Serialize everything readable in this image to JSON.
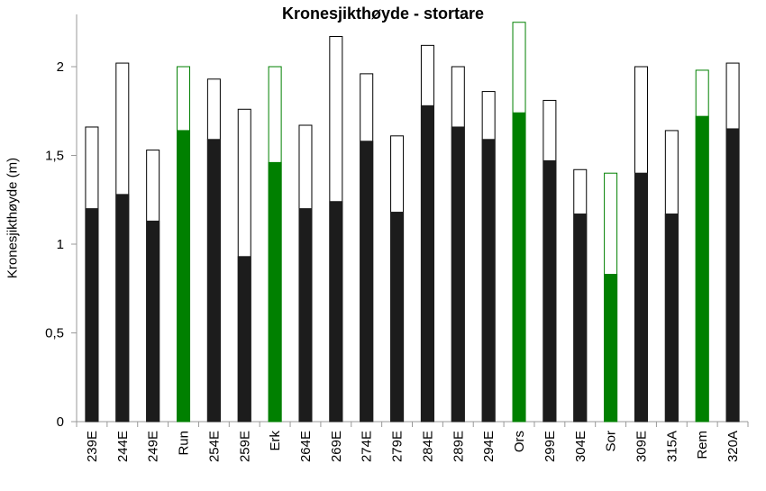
{
  "chart_data": {
    "type": "bar",
    "title": "Kronesjikthøyde - stortare",
    "ylabel": "Kronesjikthøyde  (m)",
    "xlabel": "",
    "ylim": [
      0,
      2.25
    ],
    "yticks": [
      0,
      0.5,
      1,
      1.5,
      2
    ],
    "ytick_labels": [
      "0",
      "0,5",
      "1",
      "1,5",
      "2"
    ],
    "categories": [
      "239E",
      "244E",
      "249E",
      "Run",
      "254E",
      "259E",
      "Erk",
      "264E",
      "269E",
      "274E",
      "279E",
      "284E",
      "289E",
      "294E",
      "Ors",
      "299E",
      "304E",
      "Sor",
      "309E",
      "315A",
      "Rem",
      "320A"
    ],
    "highlighted": [
      "Run",
      "Erk",
      "Ors",
      "Sor",
      "Rem"
    ],
    "series": [
      {
        "values": [
          1.2,
          1.28,
          1.13,
          1.64,
          1.59,
          0.93,
          1.46,
          1.2,
          1.24,
          1.58,
          1.18,
          1.78,
          1.66,
          1.59,
          1.74,
          1.47,
          1.17,
          0.83,
          1.4,
          1.17,
          1.72,
          1.65
        ]
      },
      {
        "values": [
          1.66,
          2.02,
          1.53,
          2.0,
          1.93,
          1.76,
          2.0,
          1.67,
          2.17,
          1.96,
          1.61,
          2.12,
          2.0,
          1.86,
          2.25,
          1.81,
          1.42,
          1.4,
          2.0,
          1.64,
          1.98,
          2.02
        ]
      }
    ],
    "colors": {
      "default_fill": "#1c1c1c",
      "highlight_fill": "#008000",
      "default_outline": "#000000",
      "highlight_outline": "#008000",
      "axis": "#999999"
    },
    "grid": false,
    "legend": "none"
  }
}
